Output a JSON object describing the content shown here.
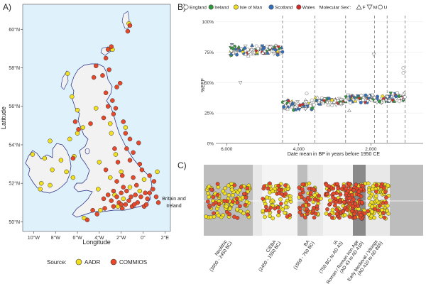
{
  "panel_labels": {
    "a": "A)",
    "b": "B)",
    "c": "C)"
  },
  "chart_data": [
    {
      "panel": "A",
      "type": "scatter",
      "subtype": "map",
      "xlabel": "Longitude",
      "ylabel": "Latitude",
      "x_ticks": [
        "10°W",
        "8°W",
        "6°W",
        "4°W",
        "2°W",
        "0°",
        "2°E"
      ],
      "x_tick_values": [
        -10,
        -8,
        -6,
        -4,
        -2,
        0,
        2
      ],
      "y_ticks": [
        "60°N",
        "58°N",
        "56°N",
        "54°N",
        "52°N",
        "50°N"
      ],
      "y_tick_values": [
        60,
        58,
        56,
        54,
        52,
        50
      ],
      "xlim": [
        -11,
        2.5
      ],
      "ylim": [
        49.5,
        61.3
      ],
      "legend_title": "Source:",
      "series": [
        {
          "name": "AADR",
          "color": "#f2e01e",
          "points": [
            [
              -1.3,
              60.3
            ],
            [
              -3.0,
              59.0
            ],
            [
              -2.8,
              58.95
            ],
            [
              -6.9,
              57.7
            ],
            [
              -6.5,
              56.5
            ],
            [
              -6.0,
              55.8
            ],
            [
              -4.3,
              55.9
            ],
            [
              -3.0,
              55.1
            ],
            [
              -5.5,
              54.9
            ],
            [
              -6.0,
              54.6
            ],
            [
              -6.7,
              54.3
            ],
            [
              -8.5,
              54.2
            ],
            [
              -10.1,
              53.5
            ],
            [
              -9.0,
              53.3
            ],
            [
              -6.3,
              53.4
            ],
            [
              -7.5,
              53.2
            ],
            [
              -8.3,
              52.7
            ],
            [
              -7.0,
              52.6
            ],
            [
              -8.5,
              51.9
            ],
            [
              -9.3,
              52.0
            ],
            [
              -6.4,
              52.3
            ],
            [
              -9.4,
              51.7
            ],
            [
              -2.9,
              54.6
            ],
            [
              -1.6,
              54.9
            ],
            [
              -2.5,
              53.5
            ],
            [
              -4.0,
              53.1
            ],
            [
              -3.0,
              52.3
            ],
            [
              -2.0,
              52.6
            ],
            [
              -4.1,
              51.7
            ],
            [
              -2.6,
              51.4
            ],
            [
              -1.2,
              51.8
            ],
            [
              -0.3,
              51.6
            ],
            [
              0.1,
              52.2
            ],
            [
              1.3,
              52.6
            ],
            [
              -1.8,
              51.2
            ],
            [
              -3.9,
              50.6
            ],
            [
              -5.4,
              50.2
            ],
            [
              -2.3,
              50.8
            ]
          ]
        },
        {
          "name": "COMMIOS",
          "color": "#e8482a",
          "points": [
            [
              -1.2,
              60.2
            ],
            [
              -1.4,
              59.9
            ],
            [
              -2.9,
              59.1
            ],
            [
              -3.2,
              58.95
            ],
            [
              -3.4,
              58.5
            ],
            [
              -4.3,
              58.1
            ],
            [
              -3.1,
              57.9
            ],
            [
              -4.5,
              57.5
            ],
            [
              -3.7,
              57.6
            ],
            [
              -2.1,
              57.2
            ],
            [
              -2.4,
              57.0
            ],
            [
              -3.4,
              56.7
            ],
            [
              -2.8,
              56.3
            ],
            [
              -3.2,
              56.0
            ],
            [
              -2.5,
              55.9
            ],
            [
              -3.6,
              55.4
            ],
            [
              -2.7,
              55.6
            ],
            [
              -1.8,
              55.2
            ],
            [
              -1.6,
              54.6
            ],
            [
              -1.2,
              54.3
            ],
            [
              -0.4,
              54.1
            ],
            [
              -1.5,
              53.8
            ],
            [
              -0.9,
              53.6
            ],
            [
              -2.3,
              53.1
            ],
            [
              -1.2,
              53.2
            ],
            [
              -0.3,
              53.0
            ],
            [
              -3.4,
              52.7
            ],
            [
              -2.4,
              52.1
            ],
            [
              -1.9,
              52.4
            ],
            [
              -0.9,
              52.3
            ],
            [
              -0.1,
              52.7
            ],
            [
              0.6,
              52.4
            ],
            [
              1.0,
              52.1
            ],
            [
              0.9,
              51.7
            ],
            [
              0.2,
              51.5
            ],
            [
              -0.7,
              51.4
            ],
            [
              -1.5,
              51.6
            ],
            [
              -2.0,
              51.5
            ],
            [
              -2.7,
              51.6
            ],
            [
              -3.2,
              51.4
            ],
            [
              -1.3,
              51.1
            ],
            [
              -0.5,
              51.0
            ],
            [
              0.4,
              51.2
            ],
            [
              1.2,
              51.3
            ],
            [
              1.4,
              51.0
            ],
            [
              -1.9,
              50.7
            ],
            [
              -2.7,
              50.8
            ],
            [
              -3.5,
              50.7
            ],
            [
              -4.2,
              50.4
            ],
            [
              -5.1,
              50.1
            ],
            [
              -1.0,
              50.8
            ],
            [
              0.1,
              50.8
            ],
            [
              -0.8,
              50.9
            ],
            [
              -2.2,
              51.0
            ],
            [
              -1.6,
              50.9
            ],
            [
              -0.2,
              51.3
            ],
            [
              0.6,
              51.5
            ],
            [
              -2.9,
              51.1
            ],
            [
              -3.6,
              51.2
            ],
            [
              -2.0,
              50.9
            ],
            [
              -1.1,
              51.3
            ],
            [
              0.3,
              50.9
            ],
            [
              -4.6,
              50.6
            ],
            [
              -2.4,
              51.3
            ],
            [
              -1.8,
              51.8
            ],
            [
              -0.6,
              51.9
            ],
            [
              -4.8,
              55.1
            ],
            [
              -6.2,
              55.2
            ],
            [
              -5.9,
              54.8
            ],
            [
              -6.4,
              53.3
            ],
            [
              -2.6,
              53.8
            ]
          ]
        }
      ]
    },
    {
      "panel": "B",
      "type": "scatter",
      "xlabel": "Date mean in BP in years before 1950 CE",
      "ylabel": "%EEF",
      "x_ticks": [
        "6,000",
        "4,000",
        "2,000"
      ],
      "x_tick_values": [
        6000,
        4000,
        2000
      ],
      "y_ticks": [
        "100%",
        "75%",
        "50%",
        "25%",
        "0%"
      ],
      "y_tick_values": [
        1.0,
        0.75,
        0.5,
        0.25,
        0.0
      ],
      "xlim": [
        6300,
        550
      ],
      "ylim": [
        0,
        1.05
      ],
      "period_boundaries": [
        4450,
        3550,
        2700,
        1900,
        1550,
        1050
      ],
      "legend_title": "",
      "legend": [
        {
          "name": "England",
          "color": "#ffffff"
        },
        {
          "name": "Ireland",
          "color": "#2f9a3a"
        },
        {
          "name": "Isle of Man",
          "color": "#f2e01e"
        },
        {
          "name": "Scotland",
          "color": "#2f6fc0"
        },
        {
          "name": "Wales",
          "color": "#d42a2a"
        }
      ],
      "shape_legend_title": "'Molecular Sex':",
      "shape_legend": [
        {
          "name": "F",
          "shape": "triangle-up"
        },
        {
          "name": "M",
          "shape": "triangle-down"
        },
        {
          "name": "U",
          "shape": "circle"
        }
      ],
      "clusters": [
        {
          "label": "Neolithic",
          "x_range": [
            5900,
            4450
          ],
          "y_center": 0.77,
          "y_spread": 0.05
        },
        {
          "label": "C/EBA",
          "x_range": [
            4450,
            3550
          ],
          "y_center": 0.32,
          "y_spread": 0.05
        },
        {
          "label": "BA",
          "x_range": [
            3550,
            2700
          ],
          "y_center": 0.35,
          "y_spread": 0.04
        },
        {
          "label": "IA",
          "x_range": [
            2700,
            1900
          ],
          "y_center": 0.37,
          "y_spread": 0.04
        },
        {
          "label": "Roman",
          "x_range": [
            1900,
            1550
          ],
          "y_center": 0.36,
          "y_spread": 0.04
        },
        {
          "label": "Early Medieval",
          "x_range": [
            1550,
            1050
          ],
          "y_center": 0.37,
          "y_spread": 0.05
        }
      ],
      "outliers": [
        [
          5620,
          0.5
        ],
        [
          1920,
          0.73
        ],
        [
          3780,
          0.41
        ],
        [
          2600,
          0.27
        ],
        [
          1100,
          0.62
        ],
        [
          1100,
          0.58
        ]
      ]
    },
    {
      "panel": "C",
      "type": "scatter",
      "subtype": "jitter-strip",
      "row_label": "Britain and Ireland",
      "series_colors": {
        "AADR": "#f2e01e",
        "COMMIOS": "#e8482a"
      },
      "periods": [
        {
          "name": "Neolithic",
          "range": "(3950 - 2450 BC)",
          "aadr": 90,
          "commios": 30
        },
        {
          "name": "C/EBA",
          "range": "(2450 - 1550 BC)",
          "aadr": 55,
          "commios": 25
        },
        {
          "name": "BA",
          "range": "(1550 - 750 BC)",
          "aadr": 30,
          "commios": 40
        },
        {
          "name": "IA",
          "range": "(750 BC to AD 43)",
          "aadr": 35,
          "commios": 65
        },
        {
          "name": "Roman / Roman Iron Age",
          "range": "(AD 43 to AD 410)",
          "aadr": 20,
          "commios": 60
        },
        {
          "name": "Early Medieval / Vikings",
          "range": "(AD 410 to AD 865)",
          "aadr": 80,
          "commios": 15
        }
      ]
    }
  ],
  "legend_a": {
    "title": "Source:",
    "aadr": "AADR",
    "commios": "COMMIOS"
  }
}
